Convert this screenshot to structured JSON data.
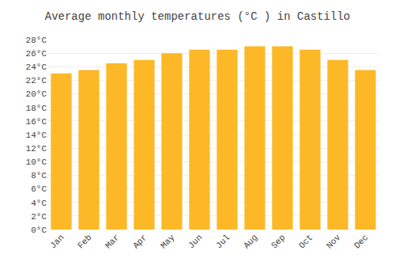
{
  "chart_data": {
    "type": "bar",
    "title": "Average monthly temperatures (°C ) in Castillo",
    "categories": [
      "Jan",
      "Feb",
      "Mar",
      "Apr",
      "May",
      "Jun",
      "Jul",
      "Aug",
      "Sep",
      "Oct",
      "Nov",
      "Dec"
    ],
    "values": [
      23.0,
      23.5,
      24.5,
      25.0,
      26.0,
      26.5,
      26.5,
      27.0,
      27.0,
      26.5,
      25.0,
      23.5
    ],
    "color": "#FDB827",
    "ylim": [
      0,
      28
    ],
    "yticks": [
      {
        "value": 0,
        "label": "0°C"
      },
      {
        "value": 2,
        "label": "2°C"
      },
      {
        "value": 4,
        "label": "4°C"
      },
      {
        "value": 6,
        "label": "6°C"
      },
      {
        "value": 8,
        "label": "8°C"
      },
      {
        "value": 10,
        "label": "10°C"
      },
      {
        "value": 12,
        "label": "12°C"
      },
      {
        "value": 14,
        "label": "14°C"
      },
      {
        "value": 16,
        "label": "16°C"
      },
      {
        "value": 18,
        "label": "18°C"
      },
      {
        "value": 20,
        "label": "20°C"
      },
      {
        "value": 22,
        "label": "22°C"
      },
      {
        "value": 24,
        "label": "24°C"
      },
      {
        "value": 26,
        "label": "26°C"
      },
      {
        "value": 28,
        "label": "28°C"
      }
    ],
    "grid": true
  }
}
